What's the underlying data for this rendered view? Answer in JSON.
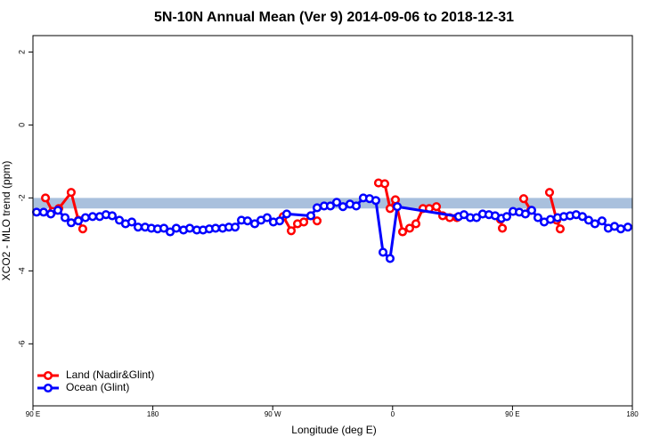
{
  "chart_data": {
    "type": "line",
    "title": "5N-10N Annual Mean (Ver 9)   2014-09-06 to 2018-12-31",
    "xlabel": "Longitude (deg E)",
    "ylabel": "XCO2 - MLO trend (ppm)",
    "xlim": [
      90,
      540
    ],
    "ylim": [
      -7.7,
      2.45
    ],
    "xticks": [
      {
        "value": 90,
        "label": "90 E"
      },
      {
        "value": 180,
        "label": "180"
      },
      {
        "value": 270,
        "label": "90 W"
      },
      {
        "value": 360,
        "label": "0"
      },
      {
        "value": 450,
        "label": "90 E"
      },
      {
        "value": 540,
        "label": "180"
      }
    ],
    "yticks": [
      2,
      0,
      -2,
      -4,
      -6
    ],
    "band": {
      "range": [
        -2.29,
        -2.0
      ],
      "color": "#a9c0dd"
    },
    "legend": "bottom-left",
    "series": [
      {
        "name": "Land (Nadir&Glint)",
        "color": "#ff0000",
        "x": [
          99.4,
          104.7,
          109.4,
          118.7,
          124.1,
          127.4,
          null,
          277.9,
          283.9,
          288.6,
          293.3,
          298.6,
          303.3,
          null,
          349.4,
          354.1,
          358.1,
          362.1,
          367.5,
          372.8,
          377.5,
          382.8,
          387.5,
          392.9,
          397.6,
          402.9,
          408.3,
          null,
          441.0,
          442.4,
          null,
          458.4,
          463.7,
          null,
          477.8,
          483.2,
          485.8
        ],
        "values": [
          -2.0,
          -2.37,
          -2.29,
          -1.85,
          -2.61,
          -2.85,
          null,
          -2.51,
          -2.9,
          -2.71,
          -2.66,
          -2.49,
          -2.63,
          null,
          -1.59,
          -1.61,
          -2.29,
          -2.05,
          -2.93,
          -2.83,
          -2.71,
          -2.29,
          -2.29,
          -2.24,
          -2.49,
          -2.54,
          -2.54,
          null,
          -2.59,
          -2.83,
          null,
          -2.02,
          -2.34,
          null,
          -1.85,
          -2.61,
          -2.85
        ]
      },
      {
        "name": "Ocean (Glint)",
        "color": "#0000ff",
        "x": [
          92.7,
          98.0,
          103.4,
          108.7,
          114.1,
          118.7,
          124.1,
          129.4,
          134.8,
          140.1,
          144.8,
          149.5,
          154.9,
          159.5,
          164.2,
          168.9,
          174.2,
          178.9,
          183.6,
          188.3,
          193.0,
          197.6,
          203.0,
          207.7,
          213.0,
          217.7,
          222.4,
          227.1,
          232.4,
          237.1,
          241.8,
          246.5,
          251.1,
          256.5,
          261.2,
          265.8,
          270.5,
          275.2,
          280.5,
          298.6,
          303.3,
          308.6,
          313.3,
          318.0,
          322.7,
          328.0,
          332.7,
          338.0,
          342.7,
          347.4,
          352.8,
          358.1,
          363.5,
          409.6,
          413.6,
          418.3,
          423.0,
          427.6,
          432.3,
          437.0,
          441.7,
          445.7,
          450.4,
          455.1,
          459.7,
          464.4,
          469.1,
          473.8,
          478.5,
          483.8,
          488.5,
          493.2,
          497.8,
          502.5,
          507.2,
          511.9,
          517.2,
          521.9,
          526.6,
          531.3,
          536.6
        ],
        "values": [
          -2.39,
          -2.39,
          -2.44,
          -2.34,
          -2.54,
          -2.68,
          -2.63,
          -2.54,
          -2.51,
          -2.51,
          -2.46,
          -2.49,
          -2.61,
          -2.71,
          -2.66,
          -2.8,
          -2.8,
          -2.83,
          -2.85,
          -2.83,
          -2.93,
          -2.83,
          -2.88,
          -2.83,
          -2.88,
          -2.88,
          -2.85,
          -2.83,
          -2.83,
          -2.8,
          -2.8,
          -2.61,
          -2.63,
          -2.71,
          -2.61,
          -2.54,
          -2.66,
          -2.63,
          -2.44,
          -2.49,
          -2.27,
          -2.22,
          -2.22,
          -2.12,
          -2.24,
          -2.17,
          -2.22,
          -2.0,
          -2.02,
          -2.07,
          -3.49,
          -3.66,
          -2.24,
          -2.51,
          -2.46,
          -2.54,
          -2.54,
          -2.44,
          -2.46,
          -2.49,
          -2.56,
          -2.51,
          -2.37,
          -2.39,
          -2.44,
          -2.34,
          -2.54,
          -2.66,
          -2.59,
          -2.54,
          -2.51,
          -2.49,
          -2.46,
          -2.51,
          -2.61,
          -2.71,
          -2.63,
          -2.83,
          -2.78,
          -2.85,
          -2.8
        ]
      }
    ]
  }
}
